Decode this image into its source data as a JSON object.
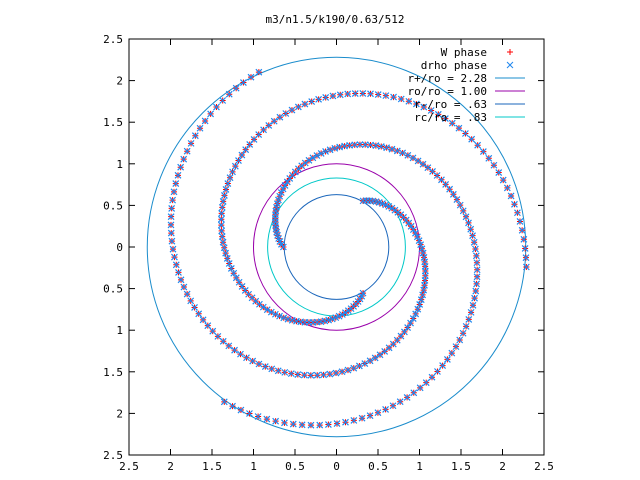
{
  "colors": {
    "w_phase": "#ff0000",
    "drho_phase": "#2288ee",
    "r_plus": "#1a8ccc",
    "ro": "#9900aa",
    "r_minus": "#1a66bb",
    "rc": "#00c8c8",
    "frame": "#000000"
  },
  "chart_data": {
    "type": "scatter",
    "title": "m3/n1.5/k190/0.63/512",
    "xlim": [
      -2.5,
      2.5
    ],
    "ylim": [
      -2.5,
      2.5
    ],
    "x_tick_values": [
      -2.5,
      -2,
      -1.5,
      -1,
      -0.5,
      0,
      0.5,
      1,
      1.5,
      2,
      2.5
    ],
    "x_tick_labels": [
      "2.5",
      "2",
      "1.5",
      "1",
      "0.5",
      "0",
      "0.5",
      "1",
      "1.5",
      "2",
      "2.5"
    ],
    "y_tick_values": [
      2.5,
      2,
      1.5,
      1,
      0.5,
      0,
      -0.5,
      -1,
      -1.5,
      -2,
      -2.5
    ],
    "y_tick_labels": [
      "2.5",
      "2",
      "1.5",
      "1",
      "0.5",
      "0",
      "0.5",
      "1",
      "1.5",
      "2",
      "2.5"
    ],
    "grid": false,
    "legend_position": "top-right",
    "circles": [
      {
        "name": "r+/ro = 2.28",
        "radius": 2.28,
        "color_key": "r_plus"
      },
      {
        "name": "ro/ro = 1.00",
        "radius": 1.0,
        "color_key": "ro"
      },
      {
        "name": "r-/ro = .63",
        "radius": 0.63,
        "color_key": "r_minus"
      },
      {
        "name": "rc/ro = .83",
        "radius": 0.83,
        "color_key": "rc"
      }
    ],
    "series": [
      {
        "name": "W phase",
        "marker": "plus",
        "color_key": "w_phase",
        "arms": [
          {
            "r_start": 0.64,
            "r_end": 2.3,
            "theta_start_deg": 180,
            "density": 420
          },
          {
            "r_start": 0.64,
            "r_end": 2.3,
            "theta_start_deg": 60,
            "density": 420
          },
          {
            "r_start": 0.64,
            "r_end": 2.3,
            "theta_start_deg": -60,
            "density": 420
          }
        ]
      },
      {
        "name": "drho phase",
        "marker": "cross",
        "color_key": "drho_phase",
        "arms": [
          {
            "r_start": 0.64,
            "r_end": 2.3,
            "theta_start_deg": 180,
            "density": 420
          },
          {
            "r_start": 0.64,
            "r_end": 2.3,
            "theta_start_deg": 60,
            "density": 420
          },
          {
            "r_start": 0.64,
            "r_end": 2.3,
            "theta_start_deg": -60,
            "density": 420
          }
        ]
      }
    ]
  }
}
